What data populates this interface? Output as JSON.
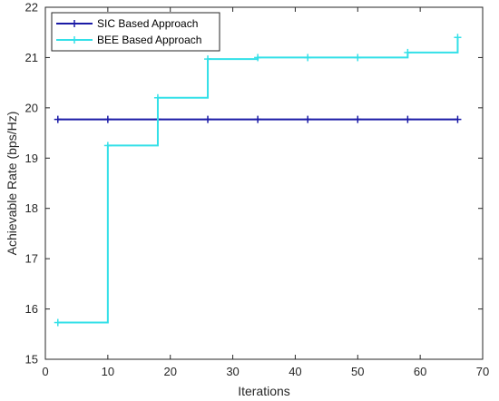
{
  "chart_data": {
    "type": "line",
    "title": "",
    "xlabel": "Iterations",
    "ylabel": "Achievable Rate (bps/Hz)",
    "xlim": [
      0,
      70
    ],
    "ylim": [
      15,
      22
    ],
    "xticks": [
      0,
      10,
      20,
      30,
      40,
      50,
      60,
      70
    ],
    "yticks": [
      15,
      16,
      17,
      18,
      19,
      20,
      21,
      22
    ],
    "grid": false,
    "legend_position": "top-left",
    "step": true,
    "series": [
      {
        "name": "SIC Based Approach",
        "color": "#1a1aa6",
        "marker": "plus",
        "x": [
          2,
          10,
          18,
          26,
          34,
          42,
          50,
          58,
          66
        ],
        "y": [
          19.77,
          19.77,
          19.77,
          19.77,
          19.77,
          19.77,
          19.77,
          19.77,
          19.77
        ]
      },
      {
        "name": "BEE Based Approach",
        "color": "#33e0e8",
        "marker": "plus",
        "x": [
          2,
          10,
          18,
          26,
          34,
          42,
          50,
          58,
          66
        ],
        "y": [
          15.73,
          19.25,
          20.2,
          20.97,
          21.0,
          21.0,
          21.0,
          21.1,
          21.4
        ]
      }
    ]
  }
}
